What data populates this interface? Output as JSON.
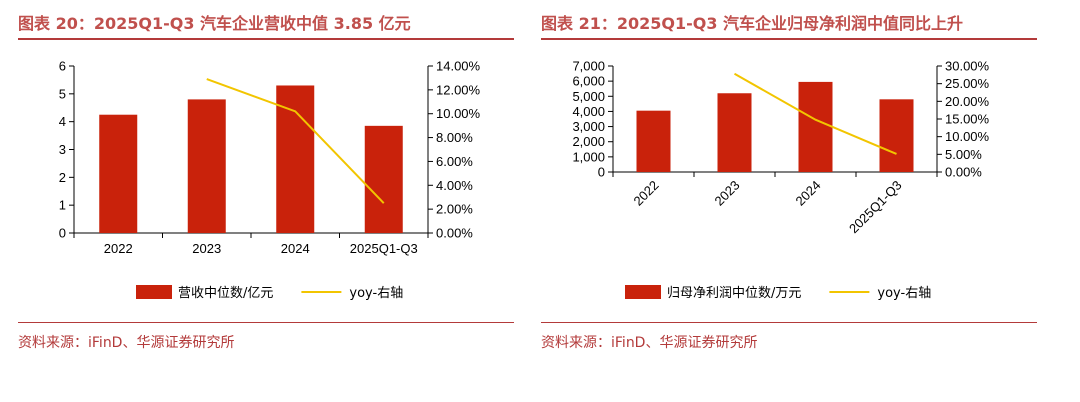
{
  "colors": {
    "bar": "#c9220b",
    "line": "#f2c500",
    "accent": "#b33a3a"
  },
  "chart_data": [
    {
      "type": "bar",
      "title": "图表 20：2025Q1-Q3 汽车企业营收中值 3.85 亿元",
      "categories": [
        "2022",
        "2023",
        "2024",
        "2025Q1-Q3"
      ],
      "series": [
        {
          "name": "营收中位数/亿元",
          "type": "bar",
          "axis": "left",
          "values": [
            4.25,
            4.8,
            5.3,
            3.85
          ]
        },
        {
          "name": "yoy-右轴",
          "type": "line",
          "axis": "right",
          "values": [
            null,
            12.9,
            10.2,
            2.5
          ]
        }
      ],
      "ylim": [
        0,
        6
      ],
      "yticks": [
        "0",
        "1",
        "2",
        "3",
        "4",
        "5",
        "6"
      ],
      "y2lim": [
        0,
        14
      ],
      "y2ticks": [
        "0.00%",
        "2.00%",
        "4.00%",
        "6.00%",
        "8.00%",
        "10.00%",
        "12.00%",
        "14.00%"
      ],
      "source": "资料来源：iFinD、华源证券研究所"
    },
    {
      "type": "bar",
      "title": "图表 21：2025Q1-Q3 汽车企业归母净利润中值同比上升",
      "categories": [
        "2022",
        "2023",
        "2024",
        "2025Q1-Q3"
      ],
      "series": [
        {
          "name": "归母净利润中位数/万元",
          "type": "bar",
          "axis": "left",
          "values": [
            4050,
            5200,
            5950,
            4800
          ]
        },
        {
          "name": "yoy-右轴",
          "type": "line",
          "axis": "right",
          "values": [
            null,
            27.8,
            14.8,
            5.1
          ]
        }
      ],
      "ylim": [
        0,
        7000
      ],
      "yticks": [
        "0",
        "1,000",
        "2,000",
        "3,000",
        "4,000",
        "5,000",
        "6,000",
        "7,000"
      ],
      "y2lim": [
        0,
        30
      ],
      "y2ticks": [
        "0.00%",
        "5.00%",
        "10.00%",
        "15.00%",
        "20.00%",
        "25.00%",
        "30.00%"
      ],
      "source": "资料来源：iFinD、华源证券研究所"
    }
  ]
}
